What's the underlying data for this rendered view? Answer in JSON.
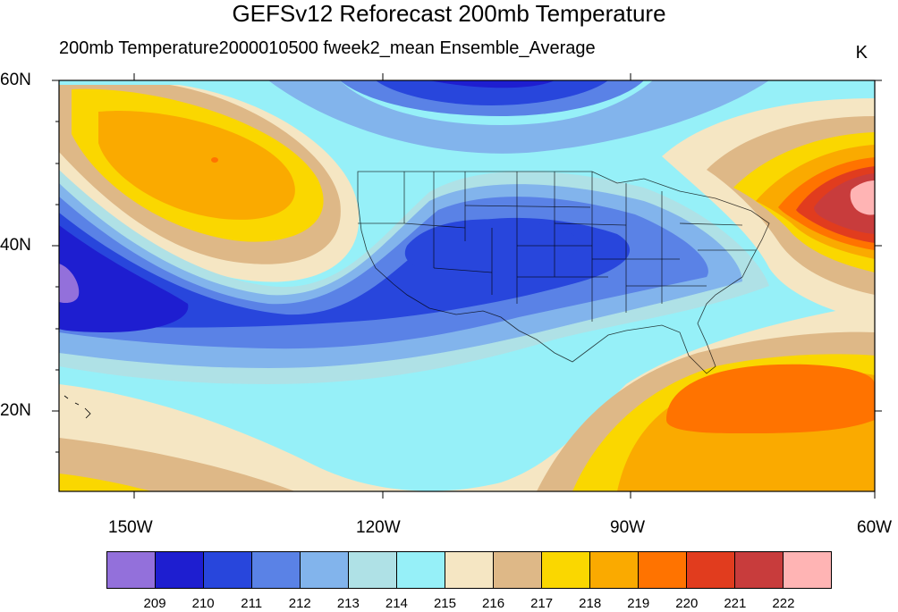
{
  "title": "GEFSv12 Reforecast 200mb Temperature",
  "subtitle": "200mb Temperature2000010500 fweek2_mean Ensemble_Average",
  "units": "K",
  "lat_labels": [
    "60N",
    "40N",
    "20N"
  ],
  "lon_labels": [
    "150W",
    "120W",
    "90W",
    "60W"
  ],
  "colorbar": {
    "colors": [
      "#9370db",
      "#1e1ed0",
      "#2846dc",
      "#5a82e6",
      "#82b4ec",
      "#afe1e6",
      "#96f0f8",
      "#f5e6c3",
      "#deb887",
      "#fad700",
      "#faaa00",
      "#ff7300",
      "#e13c1e",
      "#c83c3c",
      "#ffb4b4"
    ],
    "labels": [
      "209",
      "210",
      "211",
      "212",
      "213",
      "214",
      "215",
      "216",
      "217",
      "218",
      "219",
      "220",
      "221",
      "222"
    ]
  },
  "map_data": {
    "type": "filled_contour",
    "variable": "200mb Temperature",
    "units": "K",
    "lon_range": [
      -159,
      -60
    ],
    "lat_range": [
      10,
      60
    ],
    "features": [
      {
        "name": "warm core Gulf of Alaska",
        "value": 219
      },
      {
        "name": "cold trough southwestern US",
        "value": 211
      },
      {
        "name": "warm maximum off New England",
        "value": 222
      },
      {
        "name": "warm region Gulf of Mexico / Caribbean",
        "value": 220
      }
    ]
  }
}
